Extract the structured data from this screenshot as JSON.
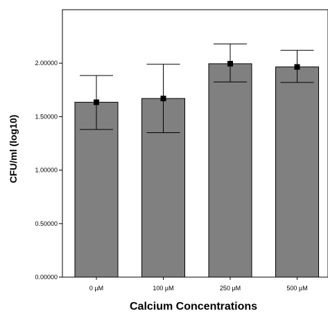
{
  "chart_data": {
    "type": "bar",
    "title": "",
    "xlabel": "Calcium Concentrations",
    "ylabel": "CFU/ml (log10)",
    "categories": [
      "0 µM",
      "100 µM",
      "250 µM",
      "500 µM"
    ],
    "values": [
      1.635,
      1.67,
      1.995,
      1.965
    ],
    "error_low": [
      1.38,
      1.35,
      1.825,
      1.82
    ],
    "error_high": [
      1.885,
      1.99,
      2.18,
      2.12
    ],
    "ylim": [
      0,
      2.5
    ],
    "yticks": [
      0,
      0.5,
      1.0,
      1.5,
      2.0
    ],
    "ytick_labels": [
      "0.00000",
      "0.50000",
      "1.00000",
      "1.50000",
      "2.00000"
    ],
    "grid": false,
    "bar_color": "#808080",
    "marker_color": "#000000"
  }
}
